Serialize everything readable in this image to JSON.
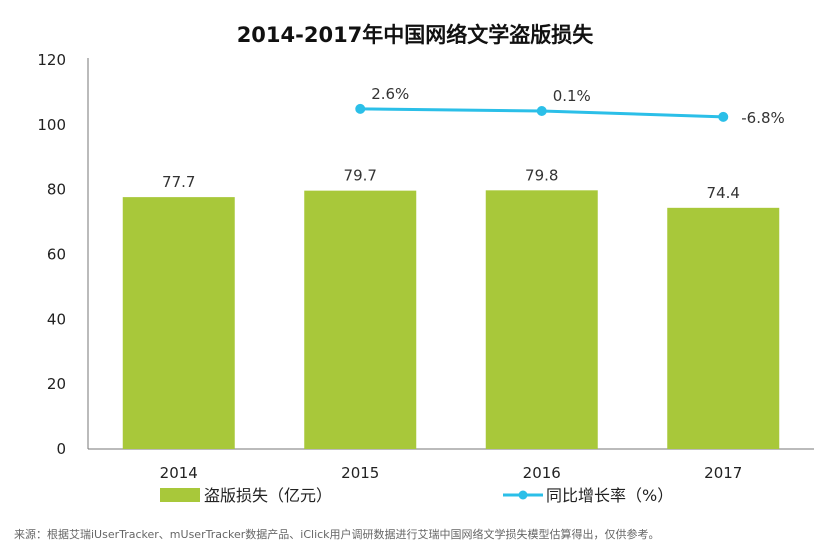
{
  "chart_data": {
    "type": "bar",
    "title": "2014-2017年中国网络文学盗版损失",
    "categories": [
      "2014",
      "2015",
      "2016",
      "2017"
    ],
    "ylim": [
      0,
      120
    ],
    "yticks": [
      "0",
      "20",
      "40",
      "60",
      "80",
      "100",
      "120"
    ],
    "series": [
      {
        "name": "盗版损失（亿元）",
        "type": "bar",
        "values": [
          77.7,
          79.7,
          79.8,
          74.4
        ],
        "labels": [
          "77.7",
          "79.7",
          "79.8",
          "74.4"
        ],
        "color": "#a8c83a"
      },
      {
        "name": "同比增长率（%）",
        "type": "line",
        "values": [
          null,
          2.6,
          0.1,
          -6.8
        ],
        "labels": [
          "",
          "2.6%",
          "0.1%",
          "-6.8%"
        ],
        "color": "#2bbfe8"
      }
    ],
    "legend": "bottom",
    "source": "来源：根据艾瑞iUserTracker、mUserTracker数据产品、iClick用户调研数据进行艾瑞中国网络文学损失模型估算得出，仅供参考。"
  }
}
